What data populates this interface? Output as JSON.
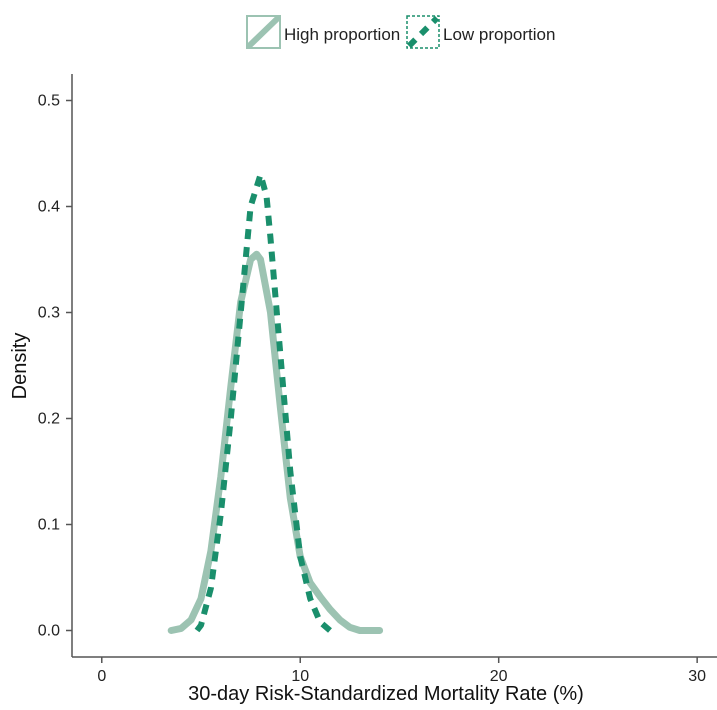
{
  "chart_data": {
    "type": "line",
    "title": "",
    "xlabel": "30-day Risk-Standardized Mortality Rate (%)",
    "ylabel": "Density",
    "xlim": [
      -1.5,
      31
    ],
    "ylim": [
      -0.025,
      0.525
    ],
    "xticks": [
      0,
      10,
      20,
      30
    ],
    "yticks": [
      0.0,
      0.1,
      0.2,
      0.3,
      0.4,
      0.5
    ],
    "xtick_labels": [
      "0",
      "10",
      "20",
      "30"
    ],
    "ytick_labels": [
      "0.0",
      "0.1",
      "0.2",
      "0.3",
      "0.4",
      "0.5"
    ],
    "grid": false,
    "legend_position": "top",
    "series": [
      {
        "name": "High proportion",
        "color": "#9cc3b2",
        "line_style": "solid",
        "x": [
          3.5,
          4.0,
          4.5,
          5.0,
          5.5,
          6.0,
          6.5,
          7.0,
          7.5,
          7.8,
          8.0,
          8.5,
          9.0,
          9.5,
          10.0,
          10.5,
          11.0,
          11.5,
          12.0,
          12.5,
          13.0,
          13.5,
          14.0
        ],
        "y": [
          0.0,
          0.002,
          0.01,
          0.03,
          0.075,
          0.145,
          0.23,
          0.31,
          0.35,
          0.355,
          0.35,
          0.3,
          0.21,
          0.125,
          0.07,
          0.045,
          0.032,
          0.02,
          0.01,
          0.003,
          0.0,
          0.0,
          0.0
        ]
      },
      {
        "name": "Low proportion",
        "color": "#1a8f6c",
        "line_style": "dashed",
        "x": [
          4.8,
          5.0,
          5.5,
          6.0,
          6.5,
          7.0,
          7.5,
          8.0,
          8.3,
          8.5,
          9.0,
          9.5,
          10.0,
          10.5,
          11.0,
          11.5
        ],
        "y": [
          0.0,
          0.005,
          0.04,
          0.11,
          0.2,
          0.3,
          0.4,
          0.43,
          0.41,
          0.37,
          0.26,
          0.15,
          0.07,
          0.03,
          0.008,
          0.0
        ]
      }
    ]
  }
}
